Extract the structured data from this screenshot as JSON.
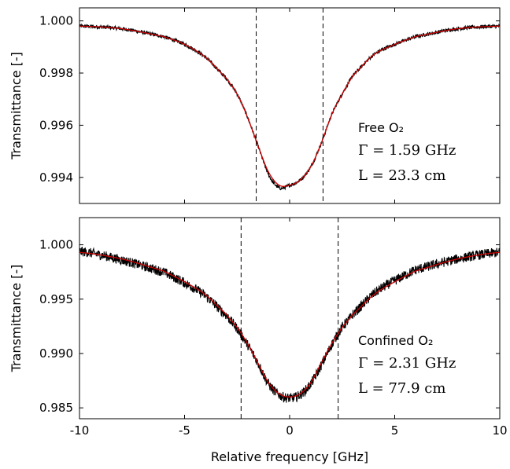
{
  "chart_data": [
    {
      "type": "line",
      "panel": "top",
      "ylabel": "Transmittance [-]",
      "xlabel": "",
      "xlim": [
        -10,
        10
      ],
      "ylim": [
        0.993,
        1.0005
      ],
      "xticks": [
        -10,
        -5,
        0,
        5,
        10
      ],
      "yticks": [
        "1.000",
        "0.998",
        "0.996",
        "0.994"
      ],
      "show_x_tick_labels": false,
      "grid": false,
      "legend": "none",
      "colors": {
        "data": "#000000",
        "fit": "#cc0000"
      },
      "series": [
        {
          "name": "",
          "kind": "measured",
          "x": [
            -10,
            -8,
            -6,
            -5,
            -4,
            -3,
            -2.5,
            -2,
            -1.5,
            -1,
            -0.5,
            0,
            0.5,
            1,
            1.5,
            2,
            2.5,
            3,
            4,
            5,
            6,
            8,
            10
          ],
          "y": [
            0.9998,
            0.9997,
            0.9994,
            0.9991,
            0.9986,
            0.9978,
            0.9972,
            0.9963,
            0.9952,
            0.9941,
            0.9936,
            0.9937,
            0.9939,
            0.9944,
            0.9953,
            0.9964,
            0.9972,
            0.9979,
            0.9987,
            0.9991,
            0.9994,
            0.9997,
            0.9998
          ]
        },
        {
          "name": "",
          "kind": "fit",
          "x": [
            -10,
            -8,
            -6,
            -5,
            -4,
            -3,
            -2.5,
            -2,
            -1.5,
            -1,
            -0.5,
            0,
            0.5,
            1,
            1.5,
            2,
            2.5,
            3,
            4,
            5,
            6,
            8,
            10
          ],
          "y": [
            0.9998,
            0.9997,
            0.9994,
            0.9991,
            0.9986,
            0.9978,
            0.9972,
            0.9963,
            0.9952,
            0.9942,
            0.9937,
            0.9937,
            0.9939,
            0.9944,
            0.9953,
            0.9964,
            0.9972,
            0.9979,
            0.9987,
            0.9991,
            0.9994,
            0.9997,
            0.9998
          ]
        }
      ],
      "vlines": [
        -1.59,
        1.59
      ],
      "annotations": [
        "Free O₂",
        "Γ = 1.59 GHz",
        "L = 23.3 cm"
      ]
    },
    {
      "type": "line",
      "panel": "bottom",
      "ylabel": "Transmittance [-]",
      "xlabel": "Relative frequency [GHz]",
      "xlim": [
        -10,
        10
      ],
      "ylim": [
        0.984,
        1.0025
      ],
      "xticks": [
        -10,
        -5,
        0,
        5,
        10
      ],
      "xtick_labels": [
        "-10",
        "-5",
        "0",
        "5",
        "10"
      ],
      "yticks": [
        "1.000",
        "0.995",
        "0.990",
        "0.985"
      ],
      "show_x_tick_labels": true,
      "grid": false,
      "legend": "none",
      "colors": {
        "data": "#000000",
        "fit": "#cc0000"
      },
      "series": [
        {
          "name": "",
          "kind": "measured",
          "x": [
            -10,
            -8,
            -6,
            -5,
            -4,
            -3,
            -2.5,
            -2,
            -1.5,
            -1,
            -0.5,
            0,
            0.5,
            1,
            1.5,
            2,
            2.5,
            3,
            4,
            5,
            6,
            8,
            10
          ],
          "y": [
            0.9994,
            0.9986,
            0.9975,
            0.9965,
            0.9953,
            0.9935,
            0.9923,
            0.9908,
            0.9891,
            0.9872,
            0.9862,
            0.9859,
            0.9862,
            0.9872,
            0.9889,
            0.9908,
            0.9924,
            0.9936,
            0.9955,
            0.9967,
            0.9977,
            0.9987,
            0.9993
          ]
        },
        {
          "name": "",
          "kind": "fit",
          "x": [
            -10,
            -8,
            -6,
            -5,
            -4,
            -3,
            -2.5,
            -2,
            -1.5,
            -1,
            -0.5,
            0,
            0.5,
            1,
            1.5,
            2,
            2.5,
            3,
            4,
            5,
            6,
            8,
            10
          ],
          "y": [
            0.9993,
            0.9987,
            0.9976,
            0.9966,
            0.9954,
            0.9936,
            0.9924,
            0.9909,
            0.9891,
            0.9873,
            0.9863,
            0.986,
            0.9863,
            0.9873,
            0.9891,
            0.9909,
            0.9924,
            0.9936,
            0.9954,
            0.9966,
            0.9976,
            0.9987,
            0.9993
          ]
        }
      ],
      "vlines": [
        -2.31,
        2.31
      ],
      "annotations": [
        "Confined O₂",
        "Γ = 2.31 GHz",
        "L = 77.9 cm"
      ]
    }
  ]
}
